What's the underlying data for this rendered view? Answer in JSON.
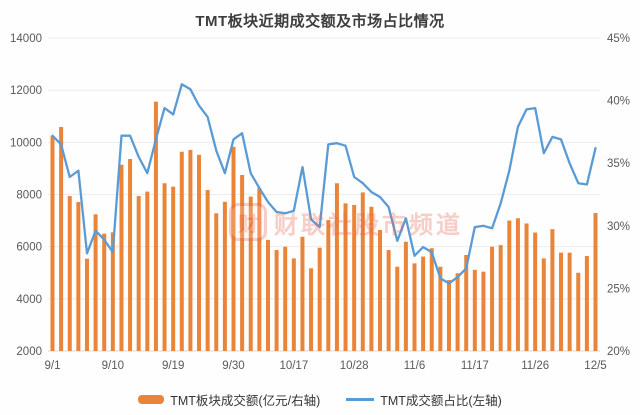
{
  "title": "TMT板块近期成交额及市场占比情况",
  "watermark": {
    "logo_char": "财",
    "text": "财联社股市频道"
  },
  "colors": {
    "bar": "#EA8439",
    "line": "#5B9BD5",
    "grid": "#ececec",
    "baseline": "#d9d9d9",
    "axis_text": "#595959",
    "title_text": "#3d3d3d",
    "watermark": "#E8604C"
  },
  "legend": [
    {
      "type": "bar",
      "label": "TMT板块成交额(亿元/右轴)",
      "color": "#EA8439"
    },
    {
      "type": "line",
      "label": "TMT成交额占比(左轴)",
      "color": "#5B9BD5"
    }
  ],
  "chart_data": {
    "type": "bar",
    "combo": "bar+line",
    "title": "TMT板块近期成交额及市场占比情况",
    "x": [
      "9/1",
      "9/2",
      "9/3",
      "9/4",
      "9/5",
      "9/8",
      "9/9",
      "9/10",
      "9/11",
      "9/12",
      "9/15",
      "9/16",
      "9/17",
      "9/18",
      "9/19",
      "9/22",
      "9/23",
      "9/24",
      "9/25",
      "9/26",
      "9/29",
      "9/30",
      "10/9",
      "10/10",
      "10/13",
      "10/14",
      "10/15",
      "10/16",
      "10/17",
      "10/20",
      "10/21",
      "10/22",
      "10/23",
      "10/24",
      "10/27",
      "10/28",
      "10/29",
      "10/30",
      "10/31",
      "11/3",
      "11/4",
      "11/5",
      "11/6",
      "11/7",
      "11/10",
      "11/11",
      "11/12",
      "11/13",
      "11/14",
      "11/17",
      "11/18",
      "11/19",
      "11/20",
      "11/21",
      "11/24",
      "11/25",
      "11/26",
      "11/27",
      "11/28",
      "12/1",
      "12/2",
      "12/3",
      "12/4",
      "12/5"
    ],
    "x_tick_labels": [
      "9/1",
      "9/10",
      "9/19",
      "9/30",
      "10/17",
      "10/28",
      "11/6",
      "11/17",
      "11/26",
      "12/5"
    ],
    "x_tick_indices": [
      0,
      7,
      14,
      21,
      28,
      35,
      42,
      49,
      56,
      63
    ],
    "series": [
      {
        "name": "TMT板块成交额(亿元/右轴)",
        "type": "bar",
        "unit": "亿元",
        "plotted_axis": "left_numeric",
        "values": [
          10240,
          10590,
          7940,
          7710,
          5540,
          7240,
          6500,
          6550,
          9140,
          9360,
          7940,
          8110,
          11560,
          8430,
          8300,
          9640,
          9710,
          9520,
          8170,
          7280,
          7720,
          9830,
          8750,
          7920,
          8240,
          6260,
          5870,
          6000,
          5550,
          6380,
          5170,
          5960,
          7020,
          8430,
          7660,
          7600,
          8080,
          7530,
          6640,
          5870,
          5230,
          6190,
          5360,
          5620,
          5940,
          5230,
          4720,
          4980,
          5680,
          5110,
          5040,
          6000,
          6060,
          7000,
          7090,
          6890,
          6540,
          5550,
          6670,
          5770,
          5770,
          5000,
          5640,
          7290
        ]
      },
      {
        "name": "TMT成交额占比(左轴)",
        "type": "line",
        "unit": "%",
        "plotted_axis": "right_percent",
        "values": [
          37.2,
          36.5,
          33.9,
          34.4,
          27.8,
          29.6,
          28.9,
          27.9,
          37.2,
          37.2,
          35.5,
          34.2,
          36.9,
          39.4,
          38.9,
          41.3,
          40.9,
          39.6,
          38.7,
          36.0,
          34.2,
          36.9,
          37.4,
          34.2,
          33.0,
          31.9,
          31.1,
          31.0,
          31.2,
          34.7,
          30.5,
          29.9,
          36.5,
          36.6,
          36.4,
          33.9,
          33.4,
          32.7,
          32.3,
          31.5,
          28.8,
          30.6,
          27.6,
          28.3,
          27.9,
          25.8,
          25.4,
          25.9,
          26.6,
          29.9,
          30.0,
          29.8,
          31.8,
          34.4,
          37.9,
          39.3,
          39.4,
          35.8,
          37.1,
          36.9,
          35.0,
          33.4,
          33.3,
          36.2
        ]
      }
    ],
    "left_axis": {
      "min": 2000,
      "max": 14000,
      "ticks": [
        14000,
        12000,
        10000,
        8000,
        6000,
        4000,
        2000
      ]
    },
    "right_axis": {
      "min": 20,
      "max": 45,
      "ticks": [
        "45%",
        "40%",
        "35%",
        "30%",
        "25%",
        "20%"
      ]
    },
    "grid": true,
    "legend_position": "bottom"
  }
}
